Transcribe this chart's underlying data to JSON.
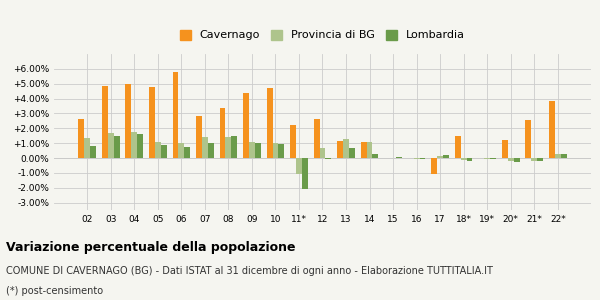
{
  "categories": [
    "02",
    "03",
    "04",
    "05",
    "06",
    "07",
    "08",
    "09",
    "10",
    "11*",
    "12",
    "13",
    "14",
    "15",
    "16",
    "17",
    "18*",
    "19*",
    "20*",
    "21*",
    "22*"
  ],
  "cavernago": [
    0.026,
    0.0485,
    0.05,
    0.048,
    0.058,
    0.028,
    0.0335,
    0.0435,
    0.047,
    0.0225,
    0.026,
    0.0115,
    0.0105,
    0.0,
    0.0,
    -0.011,
    0.015,
    0.0,
    0.012,
    0.0255,
    0.0385
  ],
  "provincia_bg": [
    0.0135,
    0.0165,
    0.0175,
    0.011,
    0.01,
    0.014,
    0.014,
    0.0105,
    0.01,
    -0.011,
    0.0065,
    0.013,
    0.0105,
    0.0,
    -0.0005,
    0.0015,
    -0.0015,
    -0.0005,
    -0.002,
    -0.002,
    0.003
  ],
  "lombardia": [
    0.008,
    0.015,
    0.016,
    0.0085,
    0.0075,
    0.01,
    0.015,
    0.01,
    0.0095,
    -0.021,
    -0.001,
    0.0065,
    0.0025,
    0.0005,
    -0.0005,
    0.002,
    -0.002,
    -0.001,
    -0.003,
    -0.002,
    0.003
  ],
  "bar_color_cavernago": "#f5921e",
  "bar_color_provincia": "#aec48c",
  "bar_color_lombardia": "#6a9b4a",
  "background_color": "#f5f5f0",
  "grid_color": "#cccccc",
  "ylim": [
    -0.035,
    0.07
  ],
  "yticks": [
    -0.03,
    -0.02,
    -0.01,
    0.0,
    0.01,
    0.02,
    0.03,
    0.04,
    0.05,
    0.06
  ],
  "ytick_labels": [
    "-3.00%",
    "-2.00%",
    "-1.00%",
    "0.00%",
    "+1.00%",
    "+2.00%",
    "+3.00%",
    "+4.00%",
    "+5.00%",
    "+6.00%"
  ],
  "legend_labels": [
    "Cavernago",
    "Provincia di BG",
    "Lombardia"
  ],
  "title": "Variazione percentuale della popolazione",
  "subtitle": "COMUNE DI CAVERNAGO (BG) - Dati ISTAT al 31 dicembre di ogni anno - Elaborazione TUTTITALIA.IT",
  "footnote": "(*) post-censimento",
  "title_fontsize": 9,
  "subtitle_fontsize": 7,
  "footnote_fontsize": 7,
  "bar_width": 0.25,
  "legend_fontsize": 8
}
